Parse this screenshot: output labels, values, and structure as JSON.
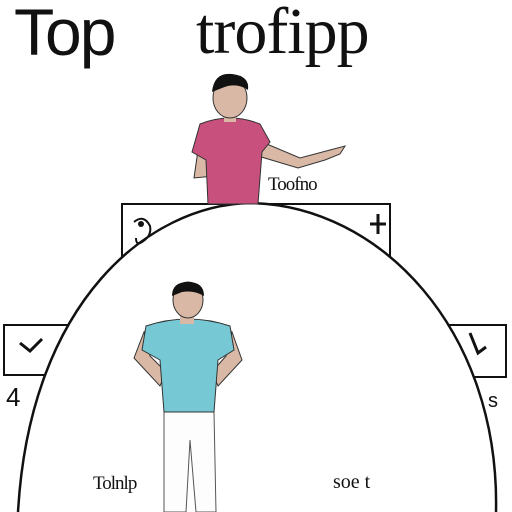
{
  "title": {
    "left": "Top",
    "right": "trofipp"
  },
  "labels": {
    "top_figure": "Toofno",
    "bottom_left": "Tolnlp",
    "bottom_right": "soe t",
    "left_side": "4",
    "right_side": "s"
  },
  "colors": {
    "top_shirt": "#c8507c",
    "bottom_shirt": "#76c8d4",
    "skin": "#d9b9a6",
    "outline": "#111111",
    "background": "#ffffff"
  },
  "icons": [
    "ear-icon",
    "plus-icon",
    "checkmark-icon-left",
    "checkmark-icon-right"
  ]
}
